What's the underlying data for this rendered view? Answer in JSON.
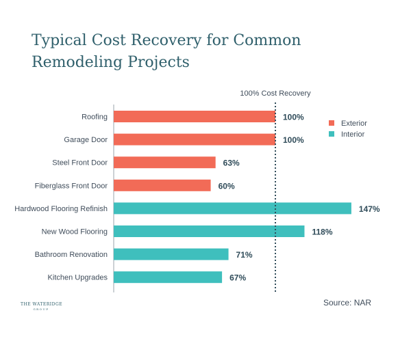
{
  "chart_data": {
    "type": "bar",
    "orientation": "horizontal",
    "title": "Typical Cost Recovery for Common Remodeling Projects",
    "categories": [
      "Roofing",
      "Garage Door",
      "Steel Front Door",
      "Fiberglass Front Door",
      "Hardwood Flooring Refinish",
      "New Wood Flooring",
      "Bathroom Renovation",
      "Kitchen Upgrades"
    ],
    "values": [
      100,
      100,
      63,
      60,
      147,
      118,
      71,
      67
    ],
    "value_labels": [
      "100%",
      "100%",
      "63%",
      "60%",
      "147%",
      "118%",
      "71%",
      "67%"
    ],
    "groups": [
      "Exterior",
      "Exterior",
      "Exterior",
      "Exterior",
      "Interior",
      "Interior",
      "Interior",
      "Interior"
    ],
    "legend": [
      {
        "name": "Exterior",
        "color": "#f26b57"
      },
      {
        "name": "Interior",
        "color": "#3fbfbd"
      }
    ],
    "reference_line": {
      "value": 100,
      "label": "100% Cost Recovery"
    },
    "xlim": [
      0,
      147
    ],
    "source": "Source: NAR"
  },
  "logo": {
    "name": "THE WATERIDGE",
    "sub": "GROUP"
  }
}
